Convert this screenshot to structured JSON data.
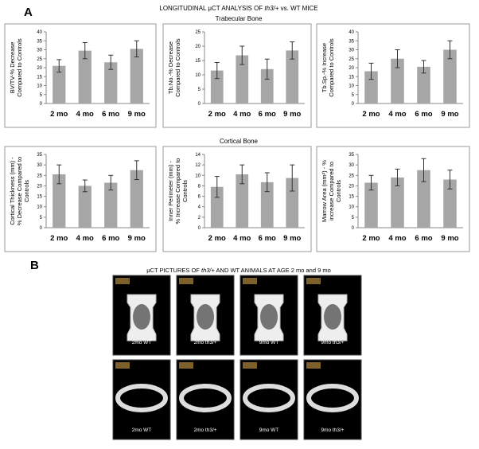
{
  "figure": {
    "panel_a": {
      "label": "A",
      "title_pre": "LONGITUDINAL μCT ANALYSIS OF ",
      "title_italic": "th3/+",
      "title_post": " vs. WT MICE",
      "section_1": "Trabecular Bone",
      "section_2": "Cortical Bone"
    },
    "panel_b": {
      "label": "B",
      "caption_pre": "μCT PICTURES OF ",
      "caption_italic": "th3/+",
      "caption_post": " AND WT ANIMALS AT AGE 2 mo and 9 mo",
      "images": [
        "2mo  WT",
        "2mo th3/+",
        "9mo WT",
        "9mo th3/+",
        "2mo WT",
        "2mo th3/+",
        "9mo WT",
        "9mo th3/+"
      ]
    }
  },
  "chart_data": [
    {
      "type": "bar",
      "ylabel": [
        "BV/TV-% Decrease",
        "Compared to Controls"
      ],
      "categories": [
        "2 mo",
        "4 mo",
        "6 mo",
        "9 mo"
      ],
      "values": [
        21,
        29.5,
        23,
        30.5
      ],
      "errors": [
        3.5,
        4.5,
        4,
        4.5
      ],
      "color": "#a6a6a6",
      "ylim": [
        0,
        40
      ],
      "yticks": [
        0,
        5,
        10,
        15,
        20,
        25,
        30,
        35,
        40
      ],
      "grid": false
    },
    {
      "type": "bar",
      "ylabel": [
        "Tb.No.-% Decrease",
        "Compared to Controls"
      ],
      "categories": [
        "2 mo",
        "4 mo",
        "6 mo",
        "9 mo"
      ],
      "values": [
        11.5,
        16.8,
        12,
        18.5
      ],
      "errors": [
        2.8,
        3.2,
        3.5,
        3
      ],
      "color": "#a6a6a6",
      "ylim": [
        0,
        25
      ],
      "yticks": [
        0,
        5,
        10,
        15,
        20,
        25
      ],
      "grid": false
    },
    {
      "type": "bar",
      "ylabel": [
        "Tb.Sp.-% Increase",
        "Compared to Controls"
      ],
      "categories": [
        "2 mo",
        "4 mo",
        "6 mo",
        "9 mo"
      ],
      "values": [
        18,
        25,
        20.5,
        30
      ],
      "errors": [
        4.5,
        5,
        3.5,
        5
      ],
      "color": "#a6a6a6",
      "ylim": [
        0,
        40
      ],
      "yticks": [
        0,
        5,
        10,
        15,
        20,
        25,
        30,
        35,
        40
      ],
      "grid": false
    },
    {
      "type": "bar",
      "ylabel": [
        "Cortical Thickness (mm) -",
        "% Decrease Compared to",
        "Controls"
      ],
      "categories": [
        "2 mo",
        "4 mo",
        "6 mo",
        "9 mo"
      ],
      "values": [
        25.5,
        20,
        21.5,
        27.5
      ],
      "errors": [
        4.5,
        2.8,
        3.5,
        4.5
      ],
      "color": "#a6a6a6",
      "ylim": [
        0,
        35
      ],
      "yticks": [
        0,
        5,
        10,
        15,
        20,
        25,
        30,
        35
      ],
      "grid": false
    },
    {
      "type": "bar",
      "ylabel": [
        "Inner Perimeter  (mm) -",
        "% Increase Compared to",
        "Controls"
      ],
      "categories": [
        "2 mo",
        "4 mo",
        "6 mo",
        "9 mo"
      ],
      "values": [
        7.8,
        10.2,
        8.7,
        9.5
      ],
      "errors": [
        2,
        1.8,
        1.8,
        2.5
      ],
      "color": "#a6a6a6",
      "ylim": [
        0,
        14
      ],
      "yticks": [
        0,
        2,
        4,
        6,
        8,
        10,
        12,
        14
      ],
      "grid": false
    },
    {
      "type": "bar",
      "ylabel": [
        "Marrow Area (mm²) - %",
        "increase Compared to",
        "Controls"
      ],
      "categories": [
        "2 mo",
        "4 mo",
        "6 mo",
        "9 mo"
      ],
      "values": [
        21.5,
        24,
        27.5,
        23
      ],
      "errors": [
        3.5,
        4,
        5.5,
        4.5
      ],
      "color": "#a6a6a6",
      "ylim": [
        0,
        35
      ],
      "yticks": [
        0,
        5,
        10,
        15,
        20,
        25,
        30,
        35
      ],
      "grid": false
    }
  ]
}
